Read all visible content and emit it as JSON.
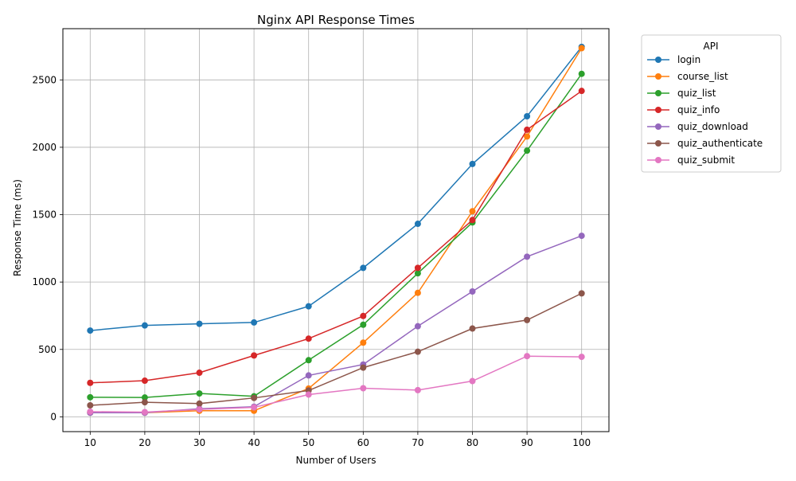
{
  "chart_data": {
    "type": "line",
    "title": "Nginx API Response Times",
    "xlabel": "Number of Users",
    "ylabel": "Response Time (ms)",
    "x": [
      10,
      20,
      30,
      40,
      50,
      60,
      70,
      80,
      90,
      100
    ],
    "xticks": [
      "10",
      "20",
      "30",
      "40",
      "50",
      "60",
      "70",
      "80",
      "90",
      "100"
    ],
    "yticks": [
      0,
      500,
      1000,
      1500,
      2000,
      2500
    ],
    "xlim": [
      5,
      105
    ],
    "ylim": [
      -110,
      2880
    ],
    "grid": true,
    "legend": {
      "title": "API",
      "placement": "outside-top-right"
    },
    "series": [
      {
        "name": "login",
        "color": "#1f77b4",
        "values": [
          640,
          678,
          690,
          700,
          820,
          1105,
          1432,
          1876,
          2230,
          2745
        ]
      },
      {
        "name": "course_list",
        "color": "#ff7f0e",
        "values": [
          30,
          30,
          45,
          45,
          210,
          550,
          920,
          1525,
          2080,
          2735
        ]
      },
      {
        "name": "quiz_list",
        "color": "#2ca02c",
        "values": [
          145,
          143,
          173,
          152,
          420,
          683,
          1065,
          1442,
          1975,
          2545
        ]
      },
      {
        "name": "quiz_info",
        "color": "#d62728",
        "values": [
          252,
          268,
          327,
          455,
          580,
          748,
          1105,
          1460,
          2130,
          2418
        ]
      },
      {
        "name": "quiz_download",
        "color": "#9467bd",
        "values": [
          30,
          30,
          60,
          75,
          307,
          388,
          672,
          930,
          1188,
          1343
        ]
      },
      {
        "name": "quiz_authenticate",
        "color": "#8c564b",
        "values": [
          85,
          108,
          98,
          140,
          195,
          365,
          483,
          655,
          718,
          916
        ]
      },
      {
        "name": "quiz_submit",
        "color": "#e377c2",
        "values": [
          38,
          35,
          55,
          70,
          165,
          212,
          198,
          265,
          450,
          445
        ]
      }
    ]
  }
}
